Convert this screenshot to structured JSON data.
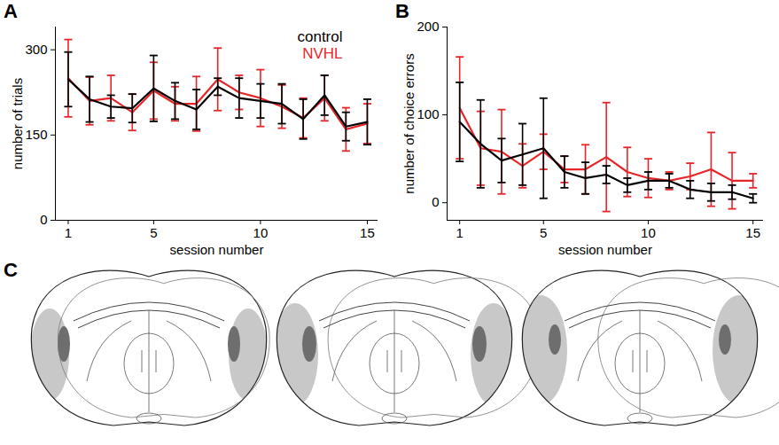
{
  "chart_data": [
    {
      "panel_label": "A",
      "type": "line",
      "x": [
        1,
        2,
        3,
        4,
        5,
        6,
        7,
        8,
        9,
        10,
        11,
        12,
        13,
        14,
        15
      ],
      "xlabel": "session number",
      "ylabel": "number of trials",
      "xlim": [
        0.4,
        15.5
      ],
      "ylim": [
        0,
        340
      ],
      "xticks": [
        1,
        5,
        10,
        15
      ],
      "yticks": [
        0,
        150,
        300
      ],
      "legend": "top-right",
      "series": [
        {
          "name": "control",
          "color": "#000000",
          "values": [
            248,
            213,
            200,
            197,
            232,
            210,
            195,
            235,
            215,
            210,
            205,
            178,
            220,
            165,
            173
          ],
          "errors": [
            48,
            40,
            20,
            25,
            58,
            32,
            35,
            15,
            35,
            30,
            35,
            35,
            35,
            25,
            40
          ]
        },
        {
          "name": "NVHL",
          "color": "#e8262a",
          "values": [
            250,
            210,
            215,
            190,
            228,
            205,
            205,
            248,
            225,
            215,
            200,
            180,
            215,
            160,
            170
          ],
          "errors": [
            68,
            42,
            40,
            32,
            50,
            30,
            48,
            55,
            30,
            50,
            38,
            35,
            40,
            38,
            35
          ]
        }
      ]
    },
    {
      "panel_label": "B",
      "type": "line",
      "x": [
        1,
        2,
        3,
        4,
        5,
        6,
        7,
        8,
        9,
        10,
        11,
        12,
        13,
        14,
        15
      ],
      "xlabel": "session number",
      "ylabel": "number of choice errors",
      "xlim": [
        0.4,
        15.5
      ],
      "ylim": [
        -20,
        200
      ],
      "xticks": [
        1,
        5,
        10,
        15
      ],
      "yticks": [
        0,
        100,
        200
      ],
      "series": [
        {
          "name": "control",
          "color": "#000000",
          "values": [
            92,
            67,
            48,
            55,
            62,
            35,
            28,
            32,
            20,
            25,
            25,
            15,
            12,
            12,
            5
          ],
          "errors": [
            45,
            50,
            25,
            35,
            57,
            18,
            18,
            10,
            8,
            10,
            8,
            10,
            10,
            8,
            5
          ]
        },
        {
          "name": "NVHL",
          "color": "#e8262a",
          "values": [
            108,
            62,
            58,
            42,
            58,
            38,
            38,
            52,
            35,
            28,
            25,
            30,
            38,
            25,
            25
          ],
          "errors": [
            58,
            42,
            48,
            25,
            20,
            15,
            28,
            62,
            28,
            22,
            10,
            15,
            42,
            32,
            8
          ]
        }
      ]
    }
  ],
  "diagram": {
    "panel_label": "C"
  }
}
